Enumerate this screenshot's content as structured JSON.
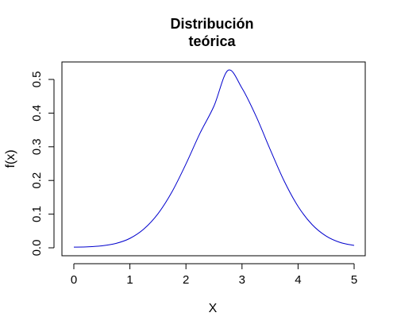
{
  "chart_data": {
    "type": "line",
    "title_lines": [
      "Distribución",
      "teórica"
    ],
    "xlabel": "X",
    "ylabel": "f(x)",
    "xlim": [
      0,
      5
    ],
    "ylim": [
      0,
      0.53
    ],
    "x_ticks": [
      "0",
      "1",
      "2",
      "3",
      "4",
      "5"
    ],
    "y_ticks": [
      "0.0",
      "0.1",
      "0.2",
      "0.3",
      "0.4",
      "0.5"
    ],
    "grid": false,
    "line_color": "#0000CD",
    "series": [
      {
        "x": [
          0,
          0.25,
          0.5,
          0.75,
          1.0,
          1.25,
          1.5,
          1.75,
          2.0,
          2.25,
          2.5,
          2.75,
          3.0,
          3.25,
          3.5,
          3.75,
          4.0,
          4.25,
          4.5,
          4.75,
          5.0
        ],
        "y": [
          0.002,
          0.003,
          0.006,
          0.013,
          0.028,
          0.056,
          0.101,
          0.166,
          0.249,
          0.34,
          0.421,
          0.527,
          0.474,
          0.391,
          0.293,
          0.199,
          0.123,
          0.069,
          0.035,
          0.016,
          0.007
        ]
      }
    ]
  }
}
